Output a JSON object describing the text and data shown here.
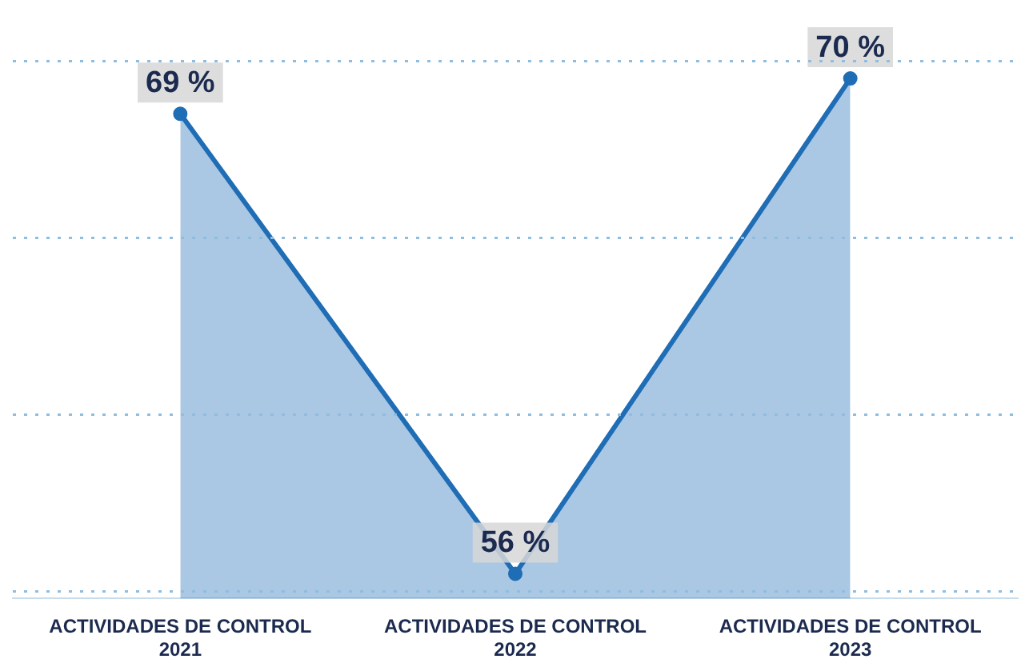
{
  "chart_data": {
    "type": "area",
    "categories": [
      "ACTIVIDADES DE CONTROL\n2021",
      "ACTIVIDADES DE CONTROL\n2022",
      "ACTIVIDADES DE CONTROL\n2023"
    ],
    "series": [
      {
        "color": "#1f6db5",
        "values": [
          69,
          56,
          70
        ],
        "value_labels": [
          "69 %",
          "56 %",
          "70 %"
        ]
      }
    ],
    "ylim": [
      55.3,
      70.5
    ],
    "yticks": [
      {
        "value": 55.5,
        "label": null
      },
      {
        "value": 60.5,
        "label": null
      },
      {
        "value": 65.5,
        "label": null
      },
      {
        "value": 70.5,
        "label": null
      }
    ],
    "grid": "y",
    "tick_labels": "x",
    "marker": "circle",
    "legend": false
  }
}
